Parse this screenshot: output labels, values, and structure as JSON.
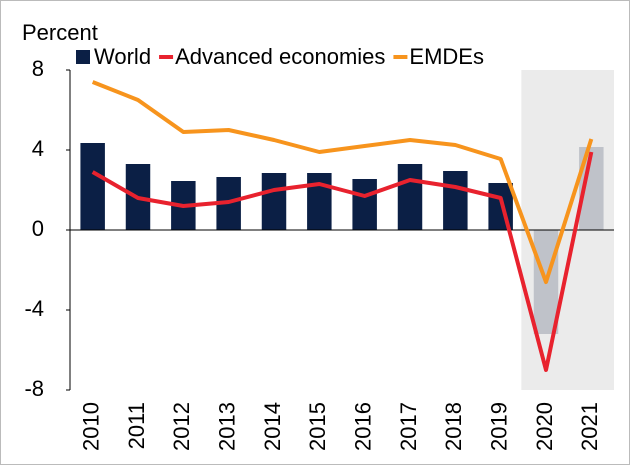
{
  "chart_data": {
    "type": "bar_line",
    "y_label": "Percent",
    "categories": [
      "2010",
      "2011",
      "2012",
      "2013",
      "2014",
      "2015",
      "2016",
      "2017",
      "2018",
      "2019",
      "2020",
      "2021"
    ],
    "series": [
      {
        "name": "World",
        "type": "bar",
        "color": "#0b1f45",
        "values": [
          4.35,
          3.3,
          2.45,
          2.65,
          2.85,
          2.85,
          2.55,
          3.3,
          2.95,
          2.35,
          -5.2,
          4.15
        ]
      },
      {
        "name": "Advanced economies",
        "type": "line",
        "color": "#e8222e",
        "values": [
          2.9,
          1.6,
          1.2,
          1.4,
          2.0,
          2.3,
          1.7,
          2.5,
          2.15,
          1.6,
          -7.0,
          3.9
        ]
      },
      {
        "name": "EMDEs",
        "type": "line",
        "color": "#f7941d",
        "values": [
          7.4,
          6.5,
          4.9,
          5.0,
          4.5,
          3.9,
          4.2,
          4.5,
          4.25,
          3.55,
          -2.6,
          4.55
        ]
      }
    ],
    "ylim": [
      -8,
      8
    ],
    "yticks": [
      -8,
      -4,
      0,
      4,
      8
    ],
    "shaded_region": {
      "from": "2020",
      "to": "2021",
      "color": "#e6e6e6"
    }
  }
}
